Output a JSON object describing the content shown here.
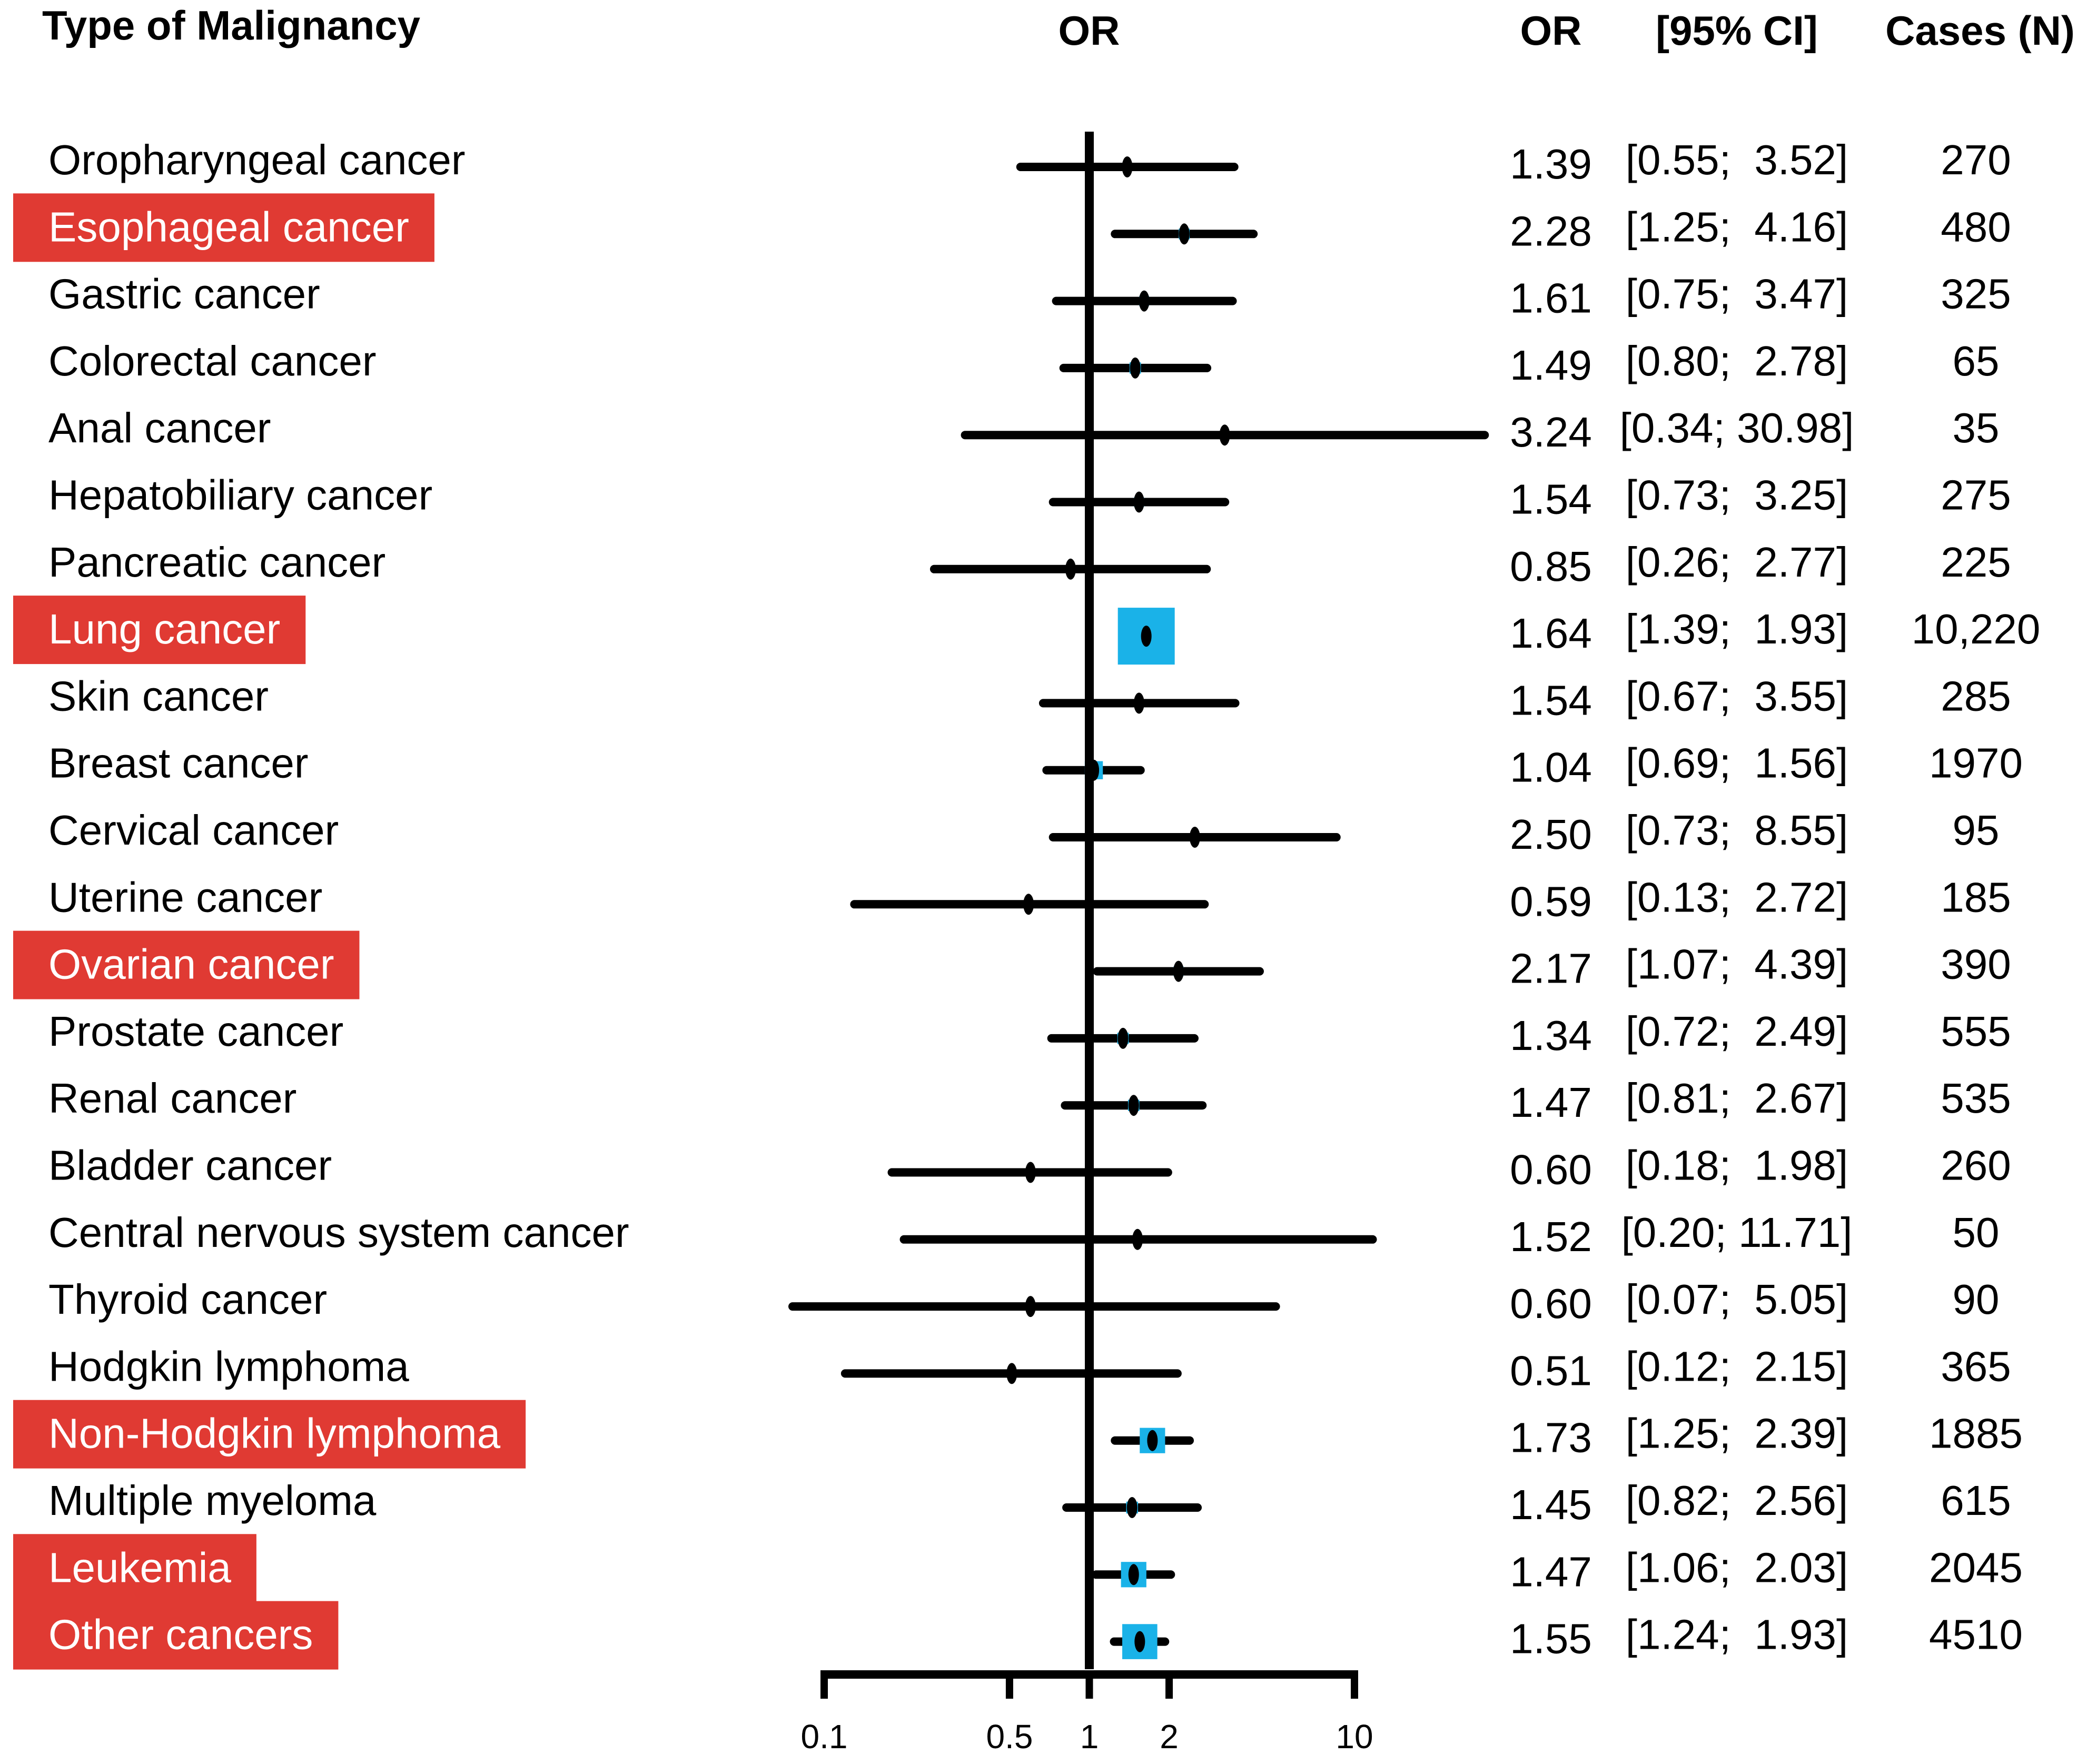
{
  "headers": {
    "type": "Type of Malignancy",
    "or_plot": "OR",
    "or": "OR",
    "ci": "[95% CI]",
    "cases": "Cases (N)"
  },
  "colors": {
    "highlight": "#e03a33",
    "box": "#1ab2e8",
    "ink": "#000000",
    "highlight_text": "#ffffff"
  },
  "chart_data": {
    "type": "forest",
    "title": "",
    "xlabel": "OR",
    "x_scale": "log",
    "xlim": [
      0.1,
      10
    ],
    "reference_line": 1,
    "ticks": [
      "0.1",
      "0.5",
      "1",
      "2",
      "10"
    ],
    "rows": [
      {
        "label": "Oropharyngeal cancer",
        "or": 1.39,
        "lo": 0.55,
        "hi": 3.52,
        "or_text": "1.39",
        "ci_text": "[0.55;  3.52]",
        "cases": "270",
        "highlight": false,
        "weight": 0
      },
      {
        "label": "Esophageal cancer",
        "or": 2.28,
        "lo": 1.25,
        "hi": 4.16,
        "or_text": "2.28",
        "ci_text": "[1.25;  4.16]",
        "cases": "480",
        "highlight": true,
        "weight": 0.05
      },
      {
        "label": "Gastric cancer",
        "or": 1.61,
        "lo": 0.75,
        "hi": 3.47,
        "or_text": "1.61",
        "ci_text": "[0.75;  3.47]",
        "cases": "325",
        "highlight": false,
        "weight": 0.03
      },
      {
        "label": "Colorectal cancer",
        "or": 1.49,
        "lo": 0.8,
        "hi": 2.78,
        "or_text": "1.49",
        "ci_text": "[0.80;  2.78]",
        "cases": "65",
        "highlight": false,
        "weight": 0.06
      },
      {
        "label": "Anal cancer",
        "or": 3.24,
        "lo": 0.34,
        "hi": 30.98,
        "or_text": "3.24",
        "ci_text": "[0.34; 30.98]",
        "cases": "35",
        "highlight": false,
        "weight": 0
      },
      {
        "label": "Hepatobiliary cancer",
        "or": 1.54,
        "lo": 0.73,
        "hi": 3.25,
        "or_text": "1.54",
        "ci_text": "[0.73;  3.25]",
        "cases": "275",
        "highlight": false,
        "weight": 0.03
      },
      {
        "label": "Pancreatic cancer",
        "or": 0.85,
        "lo": 0.26,
        "hi": 2.77,
        "or_text": "0.85",
        "ci_text": "[0.26;  2.77]",
        "cases": "225",
        "highlight": false,
        "weight": 0
      },
      {
        "label": "Lung cancer",
        "or": 1.64,
        "lo": 1.39,
        "hi": 1.93,
        "or_text": "1.64",
        "ci_text": "[1.39;  1.93]",
        "cases": "10,220",
        "highlight": true,
        "weight": 1
      },
      {
        "label": "Skin cancer",
        "or": 1.54,
        "lo": 0.67,
        "hi": 3.55,
        "or_text": "1.54",
        "ci_text": "[0.67;  3.55]",
        "cases": "285",
        "highlight": false,
        "weight": 0
      },
      {
        "label": "Breast cancer",
        "or": 1.04,
        "lo": 0.69,
        "hi": 1.56,
        "or_text": "1.04",
        "ci_text": "[0.69;  1.56]",
        "cases": "1970",
        "highlight": false,
        "weight": 0.2
      },
      {
        "label": "Cervical cancer",
        "or": 2.5,
        "lo": 0.73,
        "hi": 8.55,
        "or_text": "2.50",
        "ci_text": "[0.73;  8.55]",
        "cases": "95",
        "highlight": false,
        "weight": 0
      },
      {
        "label": "Uterine cancer",
        "or": 0.59,
        "lo": 0.13,
        "hi": 2.72,
        "or_text": "0.59",
        "ci_text": "[0.13;  2.72]",
        "cases": "185",
        "highlight": false,
        "weight": 0
      },
      {
        "label": "Ovarian cancer",
        "or": 2.17,
        "lo": 1.07,
        "hi": 4.39,
        "or_text": "2.17",
        "ci_text": "[1.07;  4.39]",
        "cases": "390",
        "highlight": true,
        "weight": 0.03
      },
      {
        "label": "Prostate cancer",
        "or": 1.34,
        "lo": 0.72,
        "hi": 2.49,
        "or_text": "1.34",
        "ci_text": "[0.72;  2.49]",
        "cases": "555",
        "highlight": false,
        "weight": 0.06
      },
      {
        "label": "Renal cancer",
        "or": 1.47,
        "lo": 0.81,
        "hi": 2.67,
        "or_text": "1.47",
        "ci_text": "[0.81;  2.67]",
        "cases": "535",
        "highlight": false,
        "weight": 0.06
      },
      {
        "label": "Bladder cancer",
        "or": 0.6,
        "lo": 0.18,
        "hi": 1.98,
        "or_text": "0.60",
        "ci_text": "[0.18;  1.98]",
        "cases": "260",
        "highlight": false,
        "weight": 0
      },
      {
        "label": "Central nervous system cancer",
        "or": 1.52,
        "lo": 0.2,
        "hi": 11.71,
        "or_text": "1.52",
        "ci_text": "[0.20; 11.71]",
        "cases": "50",
        "highlight": false,
        "weight": 0
      },
      {
        "label": "Thyroid cancer",
        "or": 0.6,
        "lo": 0.07,
        "hi": 5.05,
        "or_text": "0.60",
        "ci_text": "[0.07;  5.05]",
        "cases": "90",
        "highlight": false,
        "weight": 0
      },
      {
        "label": "Hodgkin lymphoma",
        "or": 0.51,
        "lo": 0.12,
        "hi": 2.15,
        "or_text": "0.51",
        "ci_text": "[0.12;  2.15]",
        "cases": "365",
        "highlight": false,
        "weight": 0
      },
      {
        "label": "Non-Hodgkin lymphoma",
        "or": 1.73,
        "lo": 1.25,
        "hi": 2.39,
        "or_text": "1.73",
        "ci_text": "[1.25;  2.39]",
        "cases": "1885",
        "highlight": true,
        "weight": 0.35
      },
      {
        "label": "Multiple myeloma",
        "or": 1.45,
        "lo": 0.82,
        "hi": 2.56,
        "or_text": "1.45",
        "ci_text": "[0.82;  2.56]",
        "cases": "615",
        "highlight": false,
        "weight": 0.07
      },
      {
        "label": "Leukemia",
        "or": 1.47,
        "lo": 1.06,
        "hi": 2.03,
        "or_text": "1.47",
        "ci_text": "[1.06;  2.03]",
        "cases": "2045",
        "highlight": true,
        "weight": 0.35
      },
      {
        "label": "Other cancers",
        "or": 1.55,
        "lo": 1.24,
        "hi": 1.93,
        "or_text": "1.55",
        "ci_text": "[1.24;  1.93]",
        "cases": "4510",
        "highlight": true,
        "weight": 0.55
      }
    ]
  }
}
